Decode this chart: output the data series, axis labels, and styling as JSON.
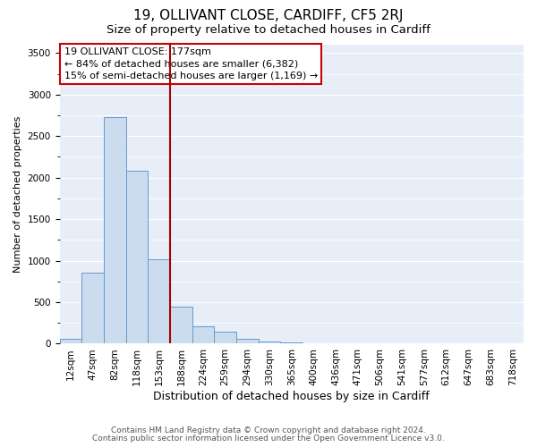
{
  "title": "19, OLLIVANT CLOSE, CARDIFF, CF5 2RJ",
  "subtitle": "Size of property relative to detached houses in Cardiff",
  "xlabel": "Distribution of detached houses by size in Cardiff",
  "ylabel": "Number of detached properties",
  "bar_labels": [
    "12sqm",
    "47sqm",
    "82sqm",
    "118sqm",
    "153sqm",
    "188sqm",
    "224sqm",
    "259sqm",
    "294sqm",
    "330sqm",
    "365sqm",
    "400sqm",
    "436sqm",
    "471sqm",
    "506sqm",
    "541sqm",
    "577sqm",
    "612sqm",
    "647sqm",
    "683sqm",
    "718sqm"
  ],
  "bar_values": [
    55,
    850,
    2730,
    2080,
    1020,
    450,
    205,
    145,
    55,
    25,
    20,
    5,
    3,
    2,
    2,
    1,
    1,
    1,
    1,
    1,
    1
  ],
  "bar_color": "#ccdcef",
  "bar_edge_color": "#6699cc",
  "vline_x_index": 5,
  "vline_color": "#aa0000",
  "annotation_title": "19 OLLIVANT CLOSE: 177sqm",
  "annotation_line1": "← 84% of detached houses are smaller (6,382)",
  "annotation_line2": "15% of semi-detached houses are larger (1,169) →",
  "annotation_box_edge_color": "#cc0000",
  "ylim": [
    0,
    3600
  ],
  "yticks": [
    0,
    500,
    1000,
    1500,
    2000,
    2500,
    3000,
    3500
  ],
  "footer1": "Contains HM Land Registry data © Crown copyright and database right 2024.",
  "footer2": "Contains public sector information licensed under the Open Government Licence v3.0.",
  "plot_bg_color": "#e8eef8",
  "fig_bg_color": "#ffffff",
  "grid_color": "#ffffff",
  "title_fontsize": 11,
  "subtitle_fontsize": 9.5,
  "xlabel_fontsize": 9,
  "ylabel_fontsize": 8,
  "tick_fontsize": 7.5,
  "annot_fontsize": 8,
  "footer_fontsize": 6.5
}
